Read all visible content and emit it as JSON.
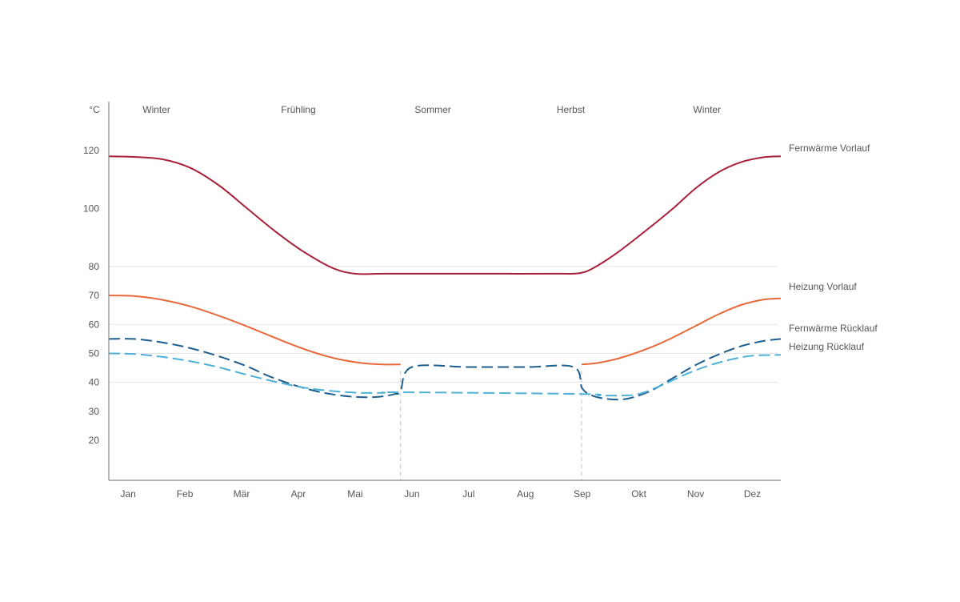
{
  "chart_data": {
    "type": "line",
    "y_unit_label": "°C",
    "y_ticks": [
      20,
      30,
      40,
      50,
      60,
      70,
      80,
      100,
      120
    ],
    "gridlines": [
      40,
      50,
      60,
      80
    ],
    "ylim": [
      4,
      124
    ],
    "xlim": [
      0.66,
      12.5
    ],
    "months": [
      "Jan",
      "Feb",
      "Mär",
      "Apr",
      "Mai",
      "Jun",
      "Jul",
      "Aug",
      "Sep",
      "Okt",
      "Nov",
      "Dez"
    ],
    "seasons": [
      {
        "label": "Winter",
        "x": 1.5
      },
      {
        "label": "Frühling",
        "x": 4.0
      },
      {
        "label": "Sommer",
        "x": 6.37
      },
      {
        "label": "Herbst",
        "x": 8.8
      },
      {
        "label": "Winter",
        "x": 11.2
      }
    ],
    "dividers": [
      5.8,
      8.99
    ],
    "colors": {
      "fernwaerme_vorlauf": "#a8203a",
      "heizung_vorlauf": "#e8683a",
      "fernwaerme_ruecklauf": "#1f5f8f",
      "heizung_ruecklauf": "#4fb0d6",
      "axis": "#888888",
      "grid": "#e4e4e4",
      "divider": "#cccccc"
    },
    "series": [
      {
        "name": "Fernwärme Vorlauf",
        "style": "solid",
        "color": "#a8203a",
        "segments": [
          [
            [
              0.66,
              118
            ],
            [
              1.1,
              117.8
            ],
            [
              1.6,
              117
            ],
            [
              2.1,
              114
            ],
            [
              2.6,
              108
            ],
            [
              3.1,
              100
            ],
            [
              3.6,
              92
            ],
            [
              4.1,
              85
            ],
            [
              4.6,
              79.5
            ],
            [
              5.0,
              77.5
            ],
            [
              5.5,
              77.5
            ],
            [
              6.5,
              77.5
            ],
            [
              7.5,
              77.5
            ],
            [
              8.5,
              77.5
            ],
            [
              8.95,
              77.7
            ],
            [
              9.2,
              79.5
            ],
            [
              9.6,
              84.5
            ],
            [
              10.1,
              92
            ],
            [
              10.6,
              100
            ],
            [
              11.0,
              107
            ],
            [
              11.4,
              112.5
            ],
            [
              11.8,
              116
            ],
            [
              12.2,
              117.7
            ],
            [
              12.5,
              118
            ]
          ]
        ]
      },
      {
        "name": "Heizung Vorlauf",
        "style": "solid",
        "color": "#e8683a",
        "segments": [
          [
            [
              0.66,
              70
            ],
            [
              1.1,
              69.8
            ],
            [
              1.6,
              68.5
            ],
            [
              2.1,
              66.2
            ],
            [
              2.6,
              63
            ],
            [
              3.1,
              59.3
            ],
            [
              3.6,
              55.3
            ],
            [
              4.1,
              51.5
            ],
            [
              4.6,
              48.5
            ],
            [
              5.1,
              46.7
            ],
            [
              5.5,
              46.2
            ],
            [
              5.8,
              46.2
            ]
          ],
          [
            [
              8.99,
              46.2
            ],
            [
              9.3,
              46.8
            ],
            [
              9.7,
              48.6
            ],
            [
              10.2,
              52
            ],
            [
              10.6,
              55.5
            ],
            [
              11.0,
              59.5
            ],
            [
              11.4,
              63.5
            ],
            [
              11.8,
              66.7
            ],
            [
              12.2,
              68.6
            ],
            [
              12.5,
              69
            ]
          ]
        ]
      },
      {
        "name": "Fernwärme Rücklauf",
        "style": "dashed",
        "color": "#1f5f8f",
        "segments": [
          [
            [
              0.66,
              55
            ],
            [
              1.1,
              55
            ],
            [
              1.6,
              53.8
            ],
            [
              2.1,
              51.8
            ],
            [
              2.6,
              49
            ],
            [
              3.1,
              45.5
            ],
            [
              3.5,
              42
            ],
            [
              4.0,
              38.6
            ],
            [
              4.5,
              36.2
            ],
            [
              5.0,
              35
            ],
            [
              5.4,
              35
            ],
            [
              5.7,
              36
            ],
            [
              5.8,
              37
            ],
            [
              6.0,
              45.3
            ],
            [
              7.0,
              45.3
            ],
            [
              8.0,
              45.3
            ],
            [
              8.85,
              45.3
            ],
            [
              9.0,
              38
            ],
            [
              9.2,
              35.3
            ],
            [
              9.5,
              34.2
            ],
            [
              9.8,
              34.4
            ],
            [
              10.2,
              37
            ],
            [
              10.6,
              41.5
            ],
            [
              11.0,
              46
            ],
            [
              11.4,
              49.6
            ],
            [
              11.8,
              52.5
            ],
            [
              12.2,
              54.3
            ],
            [
              12.5,
              55
            ]
          ]
        ]
      },
      {
        "name": "Heizung Rücklauf",
        "style": "dashed",
        "color": "#4fb0d6",
        "segments": [
          [
            [
              0.66,
              50
            ],
            [
              1.1,
              49.8
            ],
            [
              1.6,
              48.8
            ],
            [
              2.1,
              47.3
            ],
            [
              2.6,
              45.2
            ],
            [
              3.1,
              42.6
            ],
            [
              3.6,
              40.2
            ],
            [
              4.1,
              38.2
            ],
            [
              4.6,
              37
            ],
            [
              5.1,
              36.4
            ],
            [
              5.5,
              36.4
            ],
            [
              5.8,
              36.6
            ],
            [
              9.0,
              36
            ],
            [
              9.3,
              35.5
            ],
            [
              9.7,
              35.5
            ],
            [
              10.0,
              36
            ],
            [
              10.4,
              39
            ],
            [
              10.8,
              42.6
            ],
            [
              11.2,
              45.6
            ],
            [
              11.6,
              47.8
            ],
            [
              12.0,
              49.2
            ],
            [
              12.5,
              49.5
            ]
          ]
        ]
      }
    ]
  }
}
